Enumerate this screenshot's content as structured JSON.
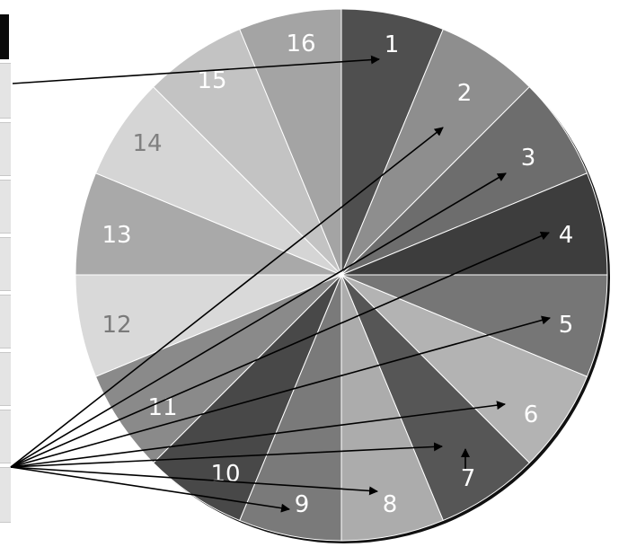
{
  "segments": [
    {
      "number": "1",
      "color": "#4f4f4f",
      "label_color": "#ffffff"
    },
    {
      "number": "2",
      "color": "#8e8e8e",
      "label_color": "#ffffff"
    },
    {
      "number": "3",
      "color": "#6d6d6d",
      "label_color": "#ffffff"
    },
    {
      "number": "4",
      "color": "#3d3d3d",
      "label_color": "#ffffff"
    },
    {
      "number": "5",
      "color": "#767676",
      "label_color": "#ffffff"
    },
    {
      "number": "6",
      "color": "#b3b3b3",
      "label_color": "#ffffff"
    },
    {
      "number": "7",
      "color": "#565656",
      "label_color": "#ffffff"
    },
    {
      "number": "8",
      "color": "#acacac",
      "label_color": "#ffffff"
    },
    {
      "number": "9",
      "color": "#7a7a7a",
      "label_color": "#ffffff"
    },
    {
      "number": "10",
      "color": "#484848",
      "label_color": "#ffffff"
    },
    {
      "number": "11",
      "color": "#8a8a8a",
      "label_color": "#ffffff"
    },
    {
      "number": "12",
      "color": "#d9d9d9",
      "label_color": "#7a7a7a"
    },
    {
      "number": "13",
      "color": "#a9a9a9",
      "label_color": "#ffffff"
    },
    {
      "number": "14",
      "color": "#d5d5d5",
      "label_color": "#808080"
    },
    {
      "number": "15",
      "color": "#c3c3c3",
      "label_color": "#ffffff"
    },
    {
      "number": "16",
      "color": "#a4a4a4",
      "label_color": "#ffffff"
    }
  ],
  "colors": {
    "background": "#ffffff",
    "divider": "#ffffff",
    "arrow": "#000000",
    "edge_shadow": "#111111"
  }
}
